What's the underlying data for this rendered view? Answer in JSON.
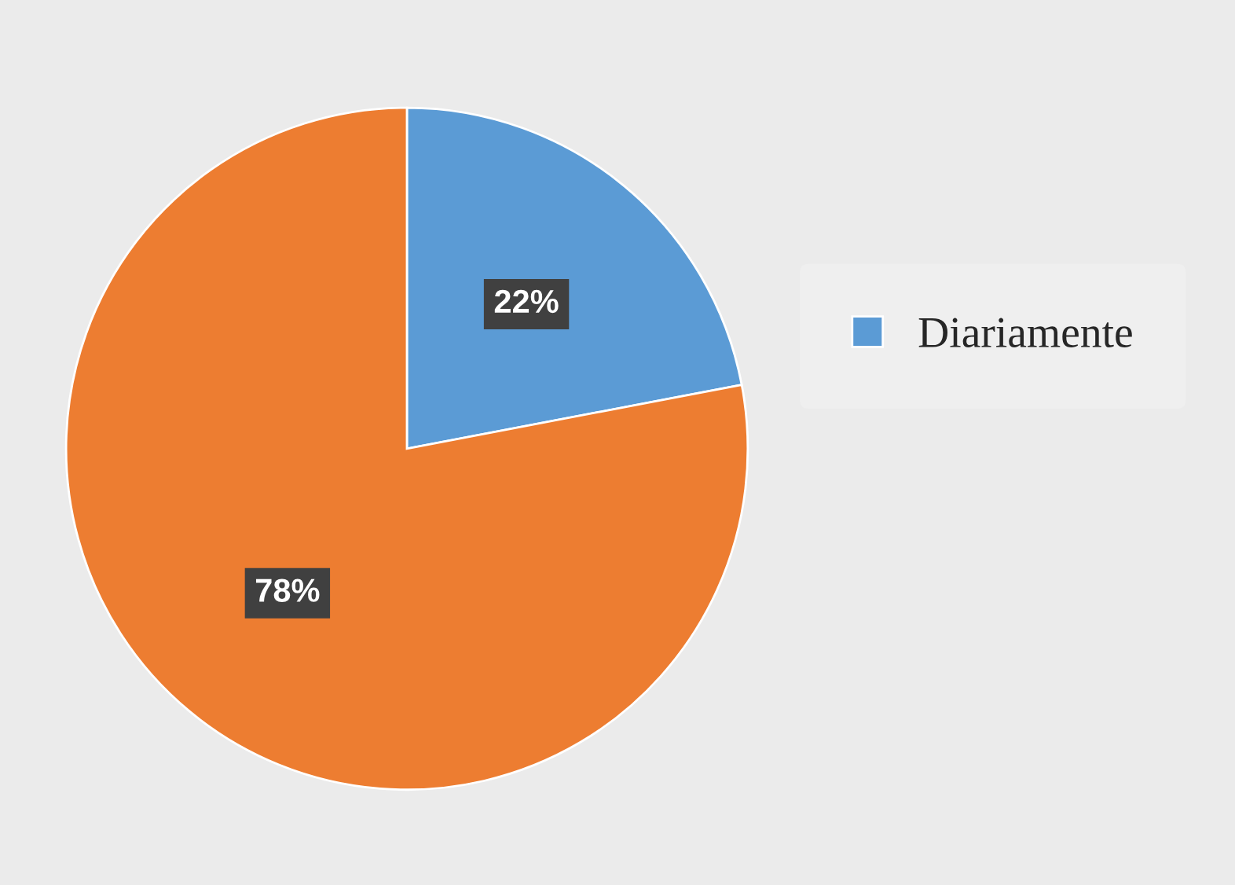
{
  "chart_data": {
    "type": "pie",
    "categories": [
      "Diariamente",
      null
    ],
    "values": [
      22,
      78
    ],
    "colors": [
      "#5b9bd5",
      "#ed7d31"
    ],
    "value_labels": [
      "22%",
      "78%"
    ],
    "legend": "right"
  }
}
